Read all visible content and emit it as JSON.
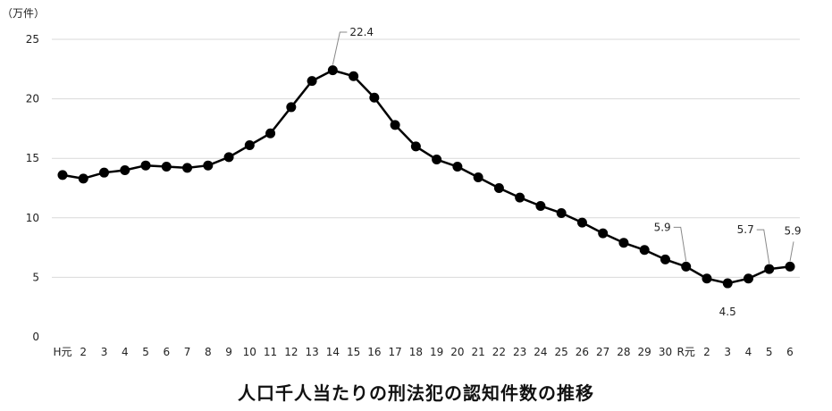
{
  "chart_data": {
    "type": "line",
    "title": "人口千人当たりの刑法犯の認知件数の推移",
    "ylabel": "（万件）",
    "xlabel": "",
    "ylim": [
      0,
      25
    ],
    "yticks": [
      "0",
      "5",
      "10",
      "15",
      "20",
      "25"
    ],
    "grid": true,
    "legend": "none",
    "line_color": "#000000",
    "grid_color": "#d9d9d9",
    "categories": [
      "H元",
      "2",
      "3",
      "4",
      "5",
      "6",
      "7",
      "8",
      "9",
      "10",
      "11",
      "12",
      "13",
      "14",
      "15",
      "16",
      "17",
      "18",
      "19",
      "20",
      "21",
      "22",
      "23",
      "24",
      "25",
      "26",
      "27",
      "28",
      "29",
      "30",
      "R元",
      "2",
      "3",
      "4",
      "5",
      "6"
    ],
    "values": [
      13.6,
      13.3,
      13.8,
      14.0,
      14.4,
      14.3,
      14.2,
      14.4,
      15.1,
      16.1,
      17.1,
      19.3,
      21.5,
      22.4,
      21.9,
      20.1,
      17.8,
      16.0,
      14.9,
      14.3,
      13.4,
      12.5,
      11.7,
      11.0,
      10.4,
      9.6,
      8.7,
      7.9,
      7.3,
      6.5,
      5.9,
      4.9,
      4.5,
      4.9,
      5.7,
      5.9
    ],
    "annotations": [
      {
        "index": 13,
        "label": "22.4",
        "pos": "above-right"
      },
      {
        "index": 30,
        "label": "5.9",
        "pos": "above-left"
      },
      {
        "index": 32,
        "label": "4.5",
        "pos": "below"
      },
      {
        "index": 34,
        "label": "5.7",
        "pos": "above-left"
      },
      {
        "index": 35,
        "label": "5.9",
        "pos": "above"
      }
    ]
  }
}
